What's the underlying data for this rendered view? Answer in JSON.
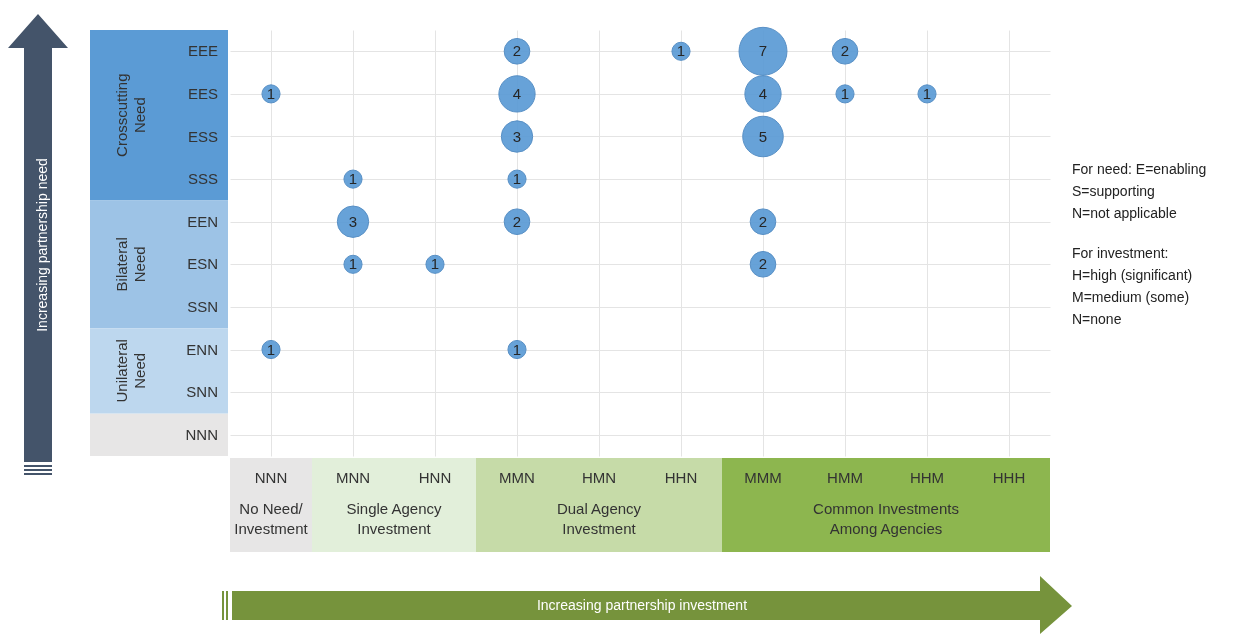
{
  "chart_data": {
    "type": "heatmap",
    "categories": [
      "NNN",
      "MNN",
      "HNN",
      "MMN",
      "HMN",
      "HHN",
      "MMM",
      "HMM",
      "HHM",
      "HHH"
    ],
    "y_categories": [
      "EEE",
      "EES",
      "ESS",
      "SSS",
      "EEN",
      "ESN",
      "SSN",
      "ENN",
      "SNN",
      "NNN"
    ],
    "cells": [
      [
        null,
        null,
        null,
        2,
        null,
        1,
        7,
        2,
        null,
        null
      ],
      [
        1,
        null,
        null,
        4,
        null,
        null,
        4,
        1,
        1,
        null
      ],
      [
        null,
        null,
        null,
        3,
        null,
        null,
        5,
        null,
        null,
        null
      ],
      [
        null,
        1,
        null,
        1,
        null,
        null,
        null,
        null,
        null,
        null
      ],
      [
        null,
        3,
        null,
        2,
        null,
        null,
        2,
        null,
        null,
        null
      ],
      [
        null,
        1,
        1,
        null,
        null,
        null,
        2,
        null,
        null,
        null
      ],
      [
        null,
        null,
        null,
        null,
        null,
        null,
        null,
        null,
        null,
        null
      ],
      [
        1,
        null,
        null,
        1,
        null,
        null,
        null,
        null,
        null,
        null
      ],
      [
        null,
        null,
        null,
        null,
        null,
        null,
        null,
        null,
        null,
        null
      ],
      [
        null,
        null,
        null,
        null,
        null,
        null,
        null,
        null,
        null,
        null
      ]
    ],
    "color": "#5b9bd5",
    "data_labels": true,
    "grid": true,
    "annotations": [
      "Crosscutting Need",
      "Bilateral Need",
      "Unilateral Need",
      "No Need/ Investment",
      "Single Agency Investment",
      "Dual Agency Investment",
      "Common Investments Among Agencies",
      "For need: E=enabling",
      "S=supporting",
      "N=not applicable",
      "For investment:",
      "H=high (significant)",
      "M=medium (some)",
      "N=none",
      "Increasing partnership need",
      "Increasing partnership investment"
    ]
  }
}
